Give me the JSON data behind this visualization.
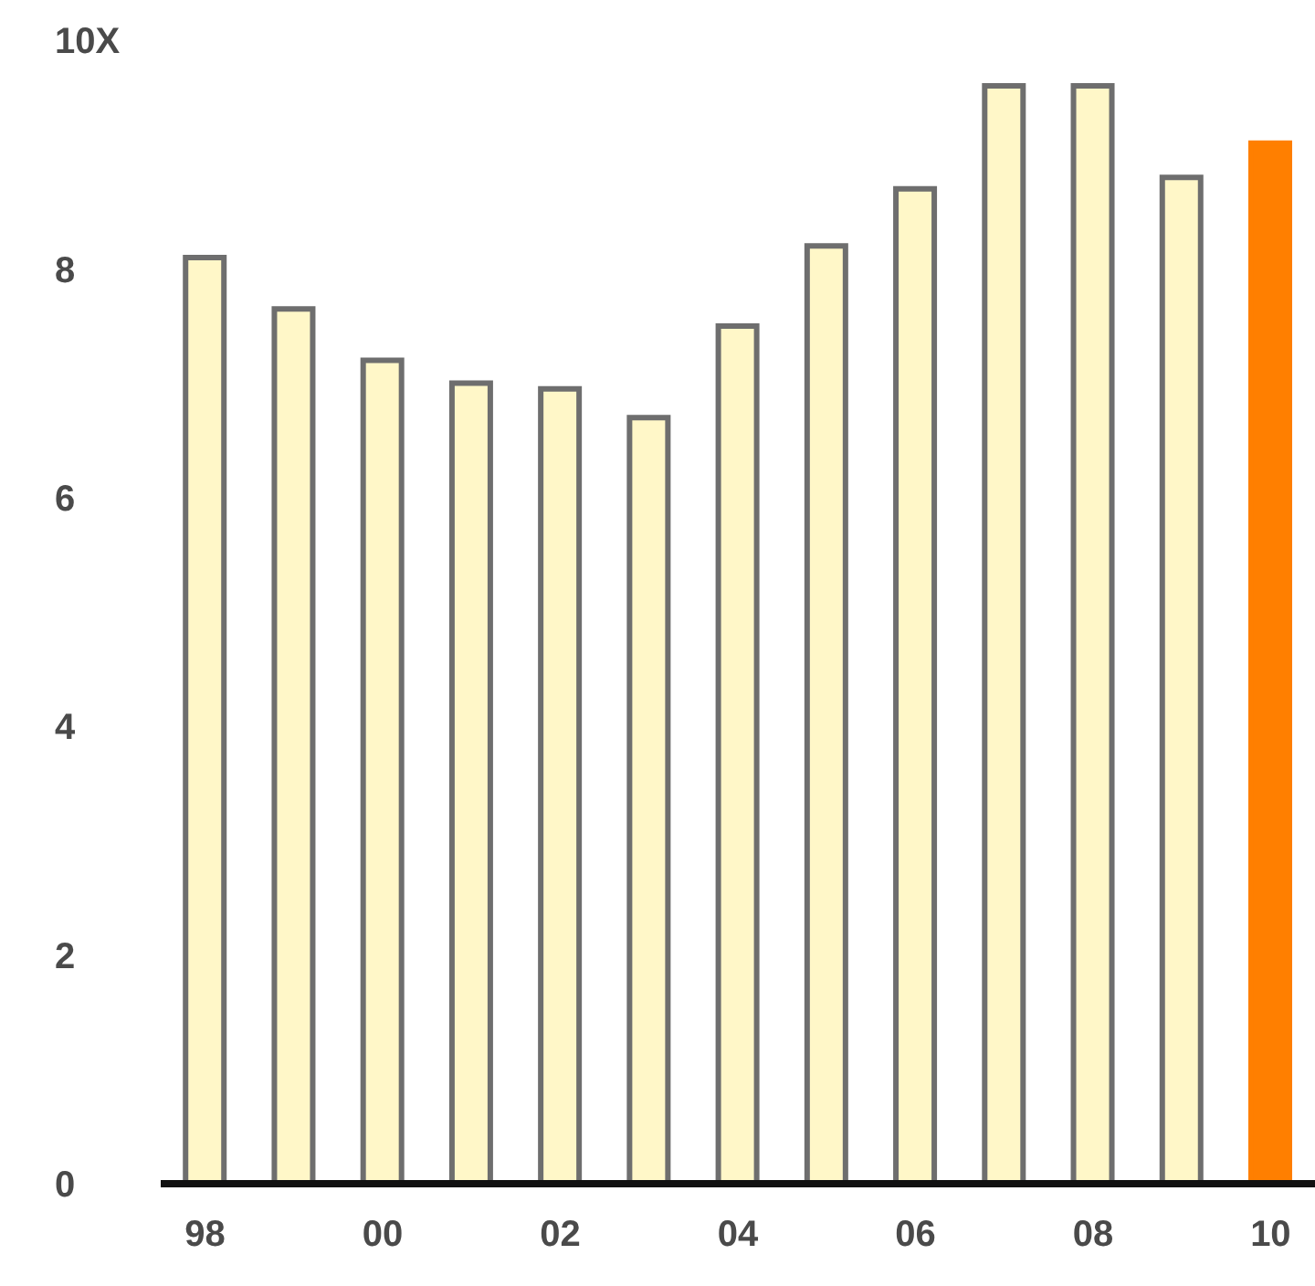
{
  "chart_data": {
    "type": "bar",
    "categories": [
      "98",
      null,
      "00",
      null,
      "02",
      null,
      "04",
      null,
      "06",
      null,
      "08",
      null,
      "10"
    ],
    "values": [
      8.1,
      7.65,
      7.2,
      7.0,
      6.95,
      6.7,
      7.5,
      8.2,
      8.7,
      9.6,
      9.6,
      8.8,
      9.1
    ],
    "colors": [
      "#fff7c8",
      "#fff7c8",
      "#fff7c8",
      "#fff7c8",
      "#fff7c8",
      "#fff7c8",
      "#fff7c8",
      "#fff7c8",
      "#fff7c8",
      "#fff7c8",
      "#fff7c8",
      "#fff7c8",
      "#ff7f00"
    ],
    "ylim": [
      0,
      10
    ],
    "yticks": [
      0,
      2,
      4,
      6,
      8,
      {
        "value": 10,
        "label": "10X"
      }
    ],
    "grid": false,
    "legend": false
  }
}
